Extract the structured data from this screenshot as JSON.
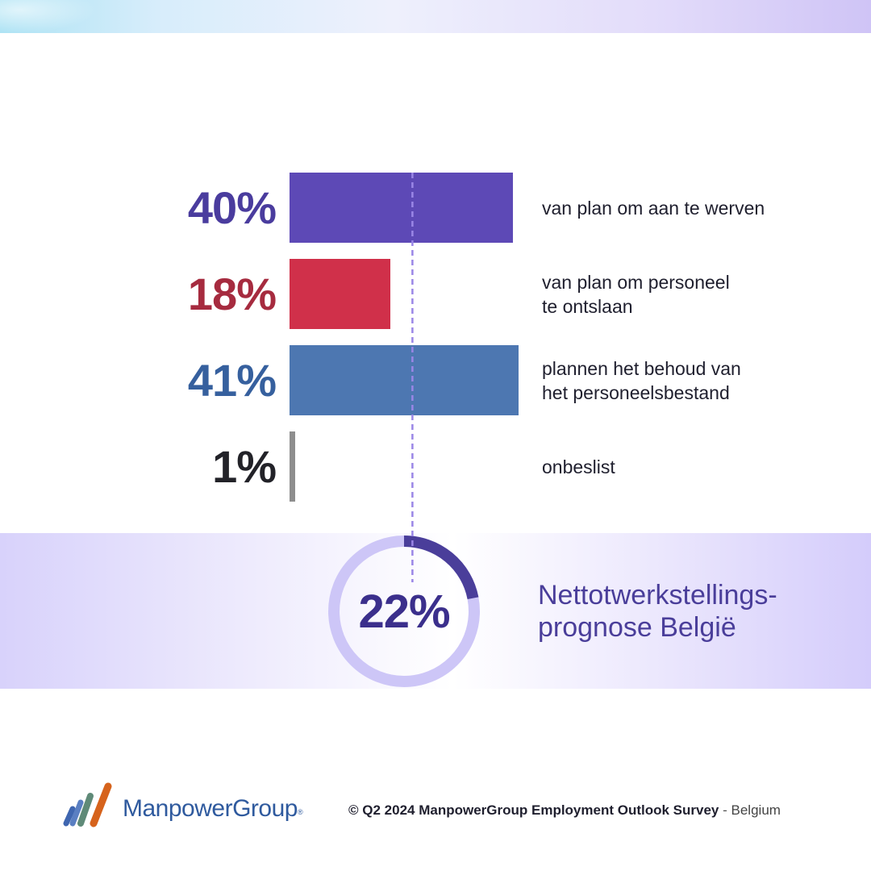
{
  "chart_data": {
    "type": "bar",
    "orientation": "horizontal",
    "categories": [
      "van plan om aan te werven",
      "van plan om personeel te ontslaan",
      "plannen het behoud van het personeelsbestand",
      "onbeslist"
    ],
    "values": [
      40,
      18,
      41,
      1
    ],
    "value_labels": [
      "40%",
      "18%",
      "41%",
      "1%"
    ],
    "category_labels": [
      "van plan om aan te werven",
      "van plan om personeel\nte ontslaan",
      "plannen het behoud van\nhet personeelsbestand",
      "onbeslist"
    ],
    "colors": [
      "#5d49b6",
      "#d0304a",
      "#4d77b1",
      "#8e8e8e"
    ],
    "label_colors": [
      "#4a3c9e",
      "#a62b3f",
      "#36609e",
      "#222228"
    ],
    "xlim": [
      0,
      41
    ],
    "net_employment_outlook": {
      "value": 22,
      "label": "22%",
      "title": "Nettotwerkstellings-\nprognose België",
      "ring_color": "#cdc6f7",
      "arc_color": "#4a3e9a"
    }
  },
  "footer": {
    "logo_text": "ManpowerGroup",
    "logo_mark": "®",
    "copyright": "©",
    "source": "Q2 2024 ManpowerGroup Employment Outlook Survey",
    "separator": "-",
    "country": "Belgium"
  }
}
